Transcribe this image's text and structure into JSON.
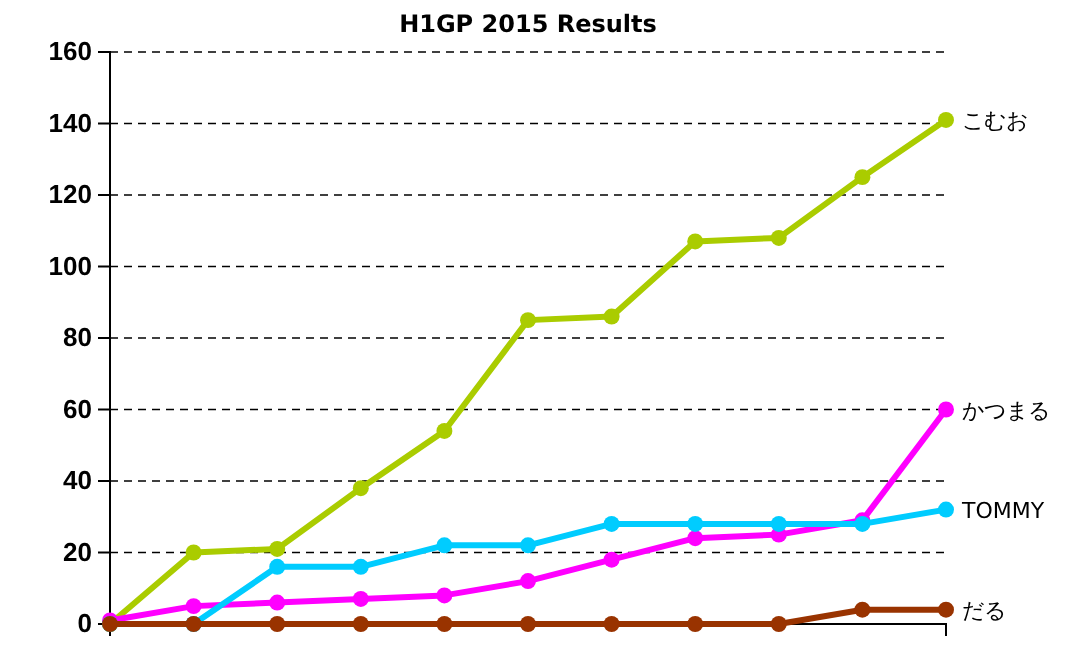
{
  "chart_data": {
    "type": "line",
    "title": "H1GP 2015 Results",
    "categories": [
      null,
      null,
      null,
      null,
      null,
      null,
      null,
      null,
      null,
      null,
      null
    ],
    "series": [
      {
        "name": "こむお",
        "color": "#aacc00",
        "values": [
          0,
          20,
          21,
          38,
          54,
          85,
          86,
          107,
          108,
          125,
          141
        ]
      },
      {
        "name": "かつまる",
        "color": "#ff00ff",
        "values": [
          1,
          5,
          6,
          7,
          8,
          12,
          18,
          24,
          25,
          29,
          60
        ]
      },
      {
        "name": "TOMMY",
        "color": "#00ccff",
        "values": [
          0,
          0,
          16,
          16,
          22,
          22,
          28,
          28,
          28,
          28,
          32
        ]
      },
      {
        "name": "だる",
        "color": "#993300",
        "values": [
          0,
          0,
          0,
          0,
          0,
          0,
          0,
          0,
          0,
          4,
          4
        ]
      }
    ],
    "ylim": [
      0,
      160
    ],
    "yticks": [
      0,
      20,
      40,
      60,
      80,
      100,
      120,
      140,
      160
    ],
    "grid": "y",
    "marker": "circle",
    "line_style": "solid"
  }
}
